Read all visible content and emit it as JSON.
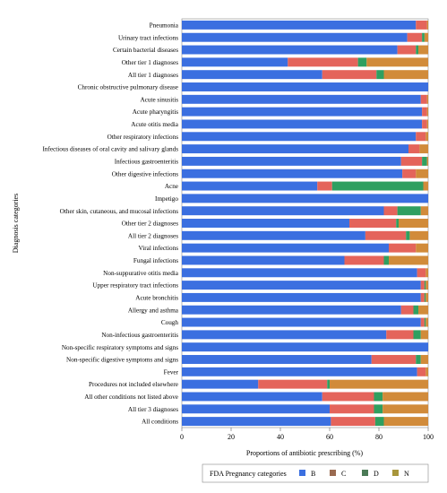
{
  "chart_data": {
    "type": "bar",
    "orientation": "horizontal",
    "stacked": true,
    "xlabel": "Proportions of antibiotic prescribing (%)",
    "ylabel": "Diagnosis categories",
    "xlim": [
      0,
      100
    ],
    "x_ticks": [
      "0",
      "20",
      "40",
      "60",
      "80",
      "100"
    ],
    "legend": {
      "title": "FDA Pregnancy categories",
      "placement": "bottom",
      "entries": [
        "B",
        "C",
        "D",
        "N"
      ]
    },
    "colors": {
      "B": "#3b6fe0",
      "C": "#e4645b",
      "D": "#2f9f60",
      "N": "#d18b3a",
      "C_legend": "#9a6a50",
      "D_legend": "#4b7a56",
      "N_legend": "#a8963c"
    },
    "categories": [
      "Pneumonia",
      "Urinary tract infections",
      "Certain bacterial diseases",
      "Other tier 1 diagnoses",
      "All tier 1 diagnoses",
      "Chronic obstructive pulmonary disease",
      "Acute sinusitis",
      "Acute pharyngitis",
      "Acute otitis media",
      "Other respiratory infections",
      "Infectious diseases of oral cavity and salivary glands",
      "Infectious gastroenteritis",
      "Other digestive infections",
      "Acne",
      "Impetigo",
      "Other skin, cutaneous, and mucosal infections",
      "Other tier 2 diagnoses",
      "All tier 2 diagnoses",
      "Viral infections",
      "Fungal infections",
      "Non-suppurative otitis media",
      "Upper respiratory tract infections",
      "Acute bronchitis",
      "Allergy and asthma",
      "Cough",
      "Non-infectious gastroenteritis",
      "Non-specific respiratory symptoms and signs",
      "Non-specific digestive symptoms and signs",
      "Fever",
      "Procedures not included elsewhere",
      "All other conditions not listed above",
      "All tier 3 diagnoses",
      "All conditions"
    ],
    "series": [
      {
        "name": "B",
        "values": [
          95,
          91.5,
          87.5,
          43,
          57,
          100,
          97,
          97.5,
          97.5,
          95,
          92,
          89,
          89.5,
          55,
          100,
          82,
          68,
          74.5,
          84,
          66,
          95.5,
          97,
          97,
          89,
          97,
          83,
          100,
          77,
          95.5,
          31,
          57,
          60,
          60.5
        ]
      },
      {
        "name": "C",
        "values": [
          4.5,
          6,
          7.5,
          28.5,
          22,
          0,
          2.5,
          2,
          2,
          4,
          4.5,
          8.5,
          5.5,
          6,
          0,
          5.5,
          19,
          16.5,
          11,
          16,
          3.5,
          1.5,
          1.5,
          5,
          1.5,
          11,
          0,
          18,
          3.5,
          28,
          21,
          18,
          18
        ]
      },
      {
        "name": "D",
        "values": [
          0,
          1,
          1,
          3.5,
          3,
          0,
          0,
          0,
          0,
          0,
          0,
          2,
          0,
          37,
          0,
          9.5,
          1,
          1.5,
          0,
          2,
          0,
          0.5,
          0.5,
          2,
          0.5,
          3,
          0,
          2,
          0,
          1,
          3.5,
          3.5,
          3.5
        ]
      },
      {
        "name": "N",
        "values": [
          0.5,
          1.5,
          4,
          25,
          18,
          0,
          0.5,
          0.5,
          0.5,
          1,
          3.5,
          0.5,
          5,
          2,
          0,
          3,
          12,
          7.5,
          5,
          16,
          1,
          1,
          1,
          4,
          1,
          3,
          0,
          3,
          1,
          40,
          18.5,
          18.5,
          18
        ]
      }
    ]
  }
}
